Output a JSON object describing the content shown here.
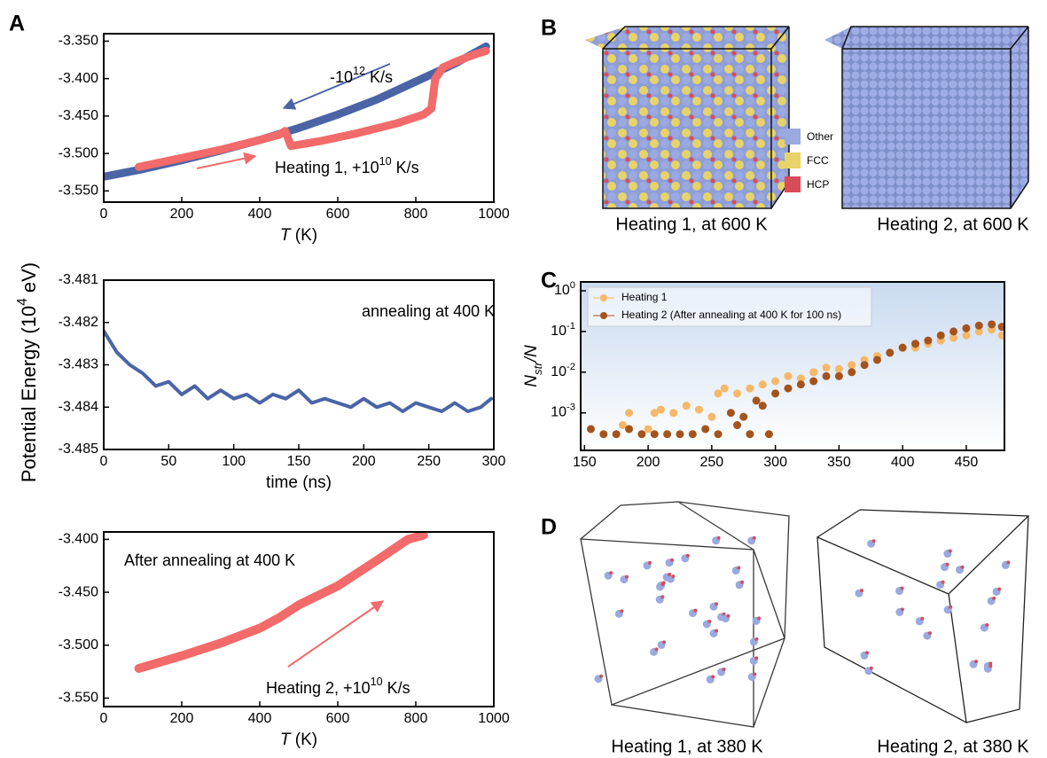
{
  "panel_labels": [
    "A",
    "B",
    "C",
    "D"
  ],
  "shared_ylabel": {
    "text": "Potential Energy (10",
    "sup": "4",
    "after": " eV)"
  },
  "structure_legend": [
    "Other",
    "FCC",
    "HCP"
  ],
  "image_captions": [
    "Heating 1, at 600 K",
    "Heating 2, at 600 K",
    "Heating 1, at 380 K",
    "Heating 2, at 380 K"
  ],
  "chart_data": [
    {
      "type": "line",
      "xlabel": {
        "italic": "T",
        "after": " (K)"
      },
      "xlim": [
        0,
        1000
      ],
      "xticks": [
        0,
        200,
        400,
        600,
        800,
        1000
      ],
      "ylim": [
        -3.565,
        -3.34
      ],
      "yticks": [
        {
          "value": -3.55,
          "label": "-3.550"
        },
        {
          "value": -3.5,
          "label": "-3.500"
        },
        {
          "value": -3.45,
          "label": "-3.450"
        },
        {
          "value": -3.4,
          "label": "-3.400"
        },
        {
          "value": -3.35,
          "label": "-3.350"
        }
      ],
      "annotations": [
        {
          "text": "-10",
          "sup": "12",
          "after": " K/s"
        },
        {
          "text": "Heating 1, +10",
          "sup": "10",
          "after": " K/s"
        }
      ],
      "series": [
        {
          "color": "#4a64a6",
          "x": [
            0,
            100,
            200,
            300,
            400,
            500,
            600,
            700,
            800,
            900,
            980
          ],
          "values": [
            -3.531,
            -3.521,
            -3.509,
            -3.496,
            -3.482,
            -3.466,
            -3.448,
            -3.428,
            -3.404,
            -3.38,
            -3.357
          ]
        },
        {
          "color": "#f26a6a",
          "x": [
            90,
            200,
            300,
            400,
            450,
            465,
            480,
            550,
            650,
            750,
            820,
            840,
            850,
            870,
            900,
            950,
            980
          ],
          "values": [
            -3.518,
            -3.506,
            -3.495,
            -3.482,
            -3.475,
            -3.47,
            -3.49,
            -3.484,
            -3.473,
            -3.46,
            -3.448,
            -3.44,
            -3.4,
            -3.385,
            -3.378,
            -3.368,
            -3.363
          ]
        }
      ]
    },
    {
      "type": "line",
      "xlabel": {
        "text": "time (ns)"
      },
      "xlim": [
        0,
        300
      ],
      "xticks": [
        0,
        50,
        100,
        150,
        200,
        250,
        300
      ],
      "ylim": [
        -3.485,
        -3.481
      ],
      "yticks": [
        -3.485,
        -3.484,
        -3.483,
        -3.482,
        -3.481
      ],
      "annotations": [
        {
          "text": "annealing at 400 K"
        }
      ],
      "series": [
        {
          "color": "#4a64a6",
          "x": [
            0,
            10,
            20,
            30,
            40,
            50,
            60,
            70,
            80,
            90,
            100,
            110,
            120,
            130,
            140,
            150,
            160,
            170,
            180,
            190,
            200,
            210,
            220,
            230,
            240,
            250,
            260,
            270,
            280,
            290,
            298
          ],
          "values": [
            -3.4822,
            -3.4827,
            -3.483,
            -3.4832,
            -3.4835,
            -3.4834,
            -3.4837,
            -3.4835,
            -3.4838,
            -3.4836,
            -3.4838,
            -3.4837,
            -3.4839,
            -3.4837,
            -3.4838,
            -3.4836,
            -3.4839,
            -3.4838,
            -3.4839,
            -3.484,
            -3.4838,
            -3.484,
            -3.4839,
            -3.4841,
            -3.4839,
            -3.484,
            -3.4841,
            -3.4839,
            -3.4841,
            -3.484,
            -3.4838
          ]
        }
      ]
    },
    {
      "type": "line",
      "xlabel": {
        "italic": "T",
        "after": " (K)"
      },
      "xlim": [
        0,
        1000
      ],
      "xticks": [
        0,
        200,
        400,
        600,
        800,
        1000
      ],
      "ylim": [
        -3.558,
        -3.393
      ],
      "yticks": [
        {
          "value": -3.55,
          "label": "-3.550"
        },
        {
          "value": -3.5,
          "label": "-3.500"
        },
        {
          "value": -3.45,
          "label": "-3.450"
        },
        {
          "value": -3.4,
          "label": "-3.400"
        }
      ],
      "annotations": [
        {
          "text": "After annealing at 400 K"
        },
        {
          "text": "Heating 2, +10",
          "sup": "10",
          "after": " K/s"
        }
      ],
      "series": [
        {
          "color": "#f26a6a",
          "x": [
            90,
            200,
            300,
            400,
            450,
            500,
            600,
            700,
            780,
            820
          ],
          "values": [
            -3.522,
            -3.51,
            -3.498,
            -3.484,
            -3.474,
            -3.462,
            -3.444,
            -3.42,
            -3.4,
            -3.396
          ]
        }
      ]
    },
    {
      "type": "scatter",
      "ylabel": {
        "italic": "N",
        "sub": "str",
        "italic_after": "/N"
      },
      "xlim": [
        147,
        480
      ],
      "xticks": [
        150,
        200,
        250,
        300,
        350,
        400,
        450
      ],
      "log_y": true,
      "ylim": [
        0.00012,
        1.65
      ],
      "yticks": [
        {
          "value": 0.001,
          "label": {
            "text": "10",
            "sup": "-3"
          }
        },
        {
          "value": 0.01,
          "label": {
            "text": "10",
            "sup": "-2"
          }
        },
        {
          "value": 0.1,
          "label": {
            "text": "10",
            "sup": "-1"
          }
        },
        {
          "value": 1,
          "label": {
            "text": "10",
            "sup": "0"
          }
        }
      ],
      "legend": "upper left",
      "series": [
        {
          "name": "Heating 1",
          "color": "#f6b868",
          "x": [
            180,
            185,
            200,
            205,
            210,
            220,
            230,
            240,
            250,
            255,
            260,
            270,
            280,
            290,
            300,
            310,
            320,
            330,
            340,
            350,
            360,
            370,
            380,
            390,
            400,
            410,
            420,
            430,
            440,
            450,
            460,
            470,
            478
          ],
          "values": [
            0.0005,
            0.001,
            0.0004,
            0.001,
            0.0012,
            0.001,
            0.0015,
            0.0012,
            0.0008,
            0.003,
            0.004,
            0.003,
            0.004,
            0.005,
            0.006,
            0.008,
            0.007,
            0.01,
            0.013,
            0.012,
            0.015,
            0.02,
            0.025,
            0.03,
            0.04,
            0.04,
            0.05,
            0.06,
            0.07,
            0.08,
            0.1,
            0.11,
            0.08
          ]
        },
        {
          "name": "Heating 2 (After annealing at 400 K for 100 ns)",
          "color": "#a4531d",
          "x": [
            155,
            165,
            175,
            185,
            195,
            205,
            215,
            225,
            235,
            245,
            255,
            265,
            270,
            275,
            280,
            285,
            290,
            295,
            300,
            310,
            320,
            330,
            340,
            350,
            360,
            370,
            380,
            390,
            400,
            410,
            420,
            430,
            440,
            450,
            460,
            470,
            478
          ],
          "values": [
            0.0004,
            0.0003,
            0.0003,
            0.0004,
            0.0003,
            0.0003,
            0.0003,
            0.0003,
            0.0003,
            0.0004,
            0.0003,
            0.001,
            0.0005,
            0.0008,
            0.0003,
            0.002,
            0.0015,
            0.0003,
            0.003,
            0.004,
            0.005,
            0.006,
            0.008,
            0.008,
            0.01,
            0.015,
            0.02,
            0.03,
            0.04,
            0.05,
            0.06,
            0.08,
            0.1,
            0.12,
            0.14,
            0.15,
            0.13
          ]
        }
      ]
    }
  ]
}
